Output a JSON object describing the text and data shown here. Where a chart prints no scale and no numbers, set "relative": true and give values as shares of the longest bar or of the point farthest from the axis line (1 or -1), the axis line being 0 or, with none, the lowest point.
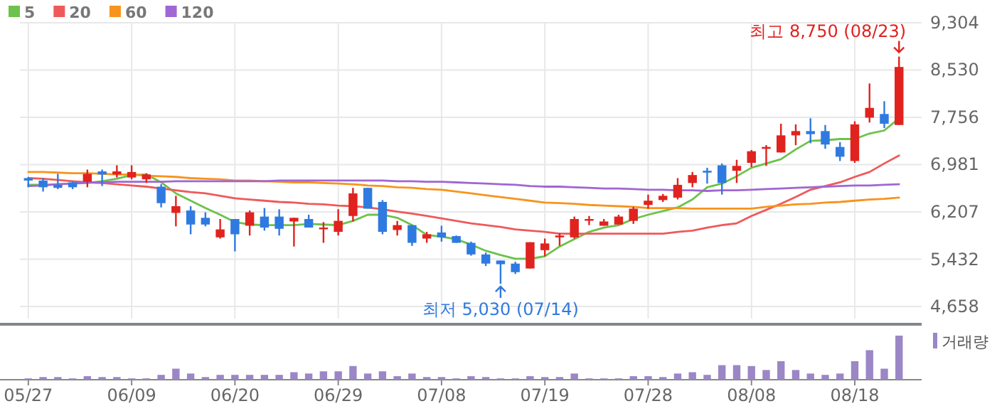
{
  "chart_data": [
    {
      "type": "candlestick",
      "categories": [
        null,
        null,
        null,
        null,
        null,
        null,
        null,
        null,
        null,
        null,
        null,
        null,
        null,
        null,
        null,
        null,
        null,
        null,
        null,
        null,
        null,
        null,
        null,
        null,
        null,
        null,
        null,
        null,
        null,
        null,
        null,
        null,
        null,
        null,
        null,
        null,
        null,
        null,
        null,
        null,
        null,
        null,
        null,
        null,
        null,
        null,
        null,
        null,
        null,
        null,
        null,
        null,
        null,
        null,
        null,
        null,
        null,
        null,
        null,
        null
      ],
      "ohlc": [
        [
          6760,
          6780,
          6610,
          6720
        ],
        [
          6720,
          6760,
          6540,
          6610
        ],
        [
          6650,
          6830,
          6580,
          6600
        ],
        [
          6690,
          6700,
          6580,
          6610
        ],
        [
          6700,
          6900,
          6610,
          6830
        ],
        [
          6870,
          6900,
          6630,
          6820
        ],
        [
          6820,
          6970,
          6770,
          6870
        ],
        [
          6770,
          6970,
          6740,
          6860
        ],
        [
          6740,
          6840,
          6680,
          6820
        ],
        [
          6620,
          6660,
          6280,
          6350
        ],
        [
          6190,
          6470,
          5970,
          6300
        ],
        [
          6230,
          6300,
          5840,
          6000
        ],
        [
          6110,
          6200,
          5970,
          6000
        ],
        [
          5790,
          6090,
          5770,
          5920
        ],
        [
          6090,
          6090,
          5560,
          5840
        ],
        [
          5980,
          6230,
          5820,
          6200
        ],
        [
          6130,
          6270,
          5900,
          5950
        ],
        [
          6130,
          6250,
          5820,
          5930
        ],
        [
          6050,
          6110,
          5640,
          6110
        ],
        [
          6090,
          6160,
          5950,
          5950
        ],
        [
          5930,
          6040,
          5700,
          5950
        ],
        [
          5880,
          6250,
          5820,
          6060
        ],
        [
          6140,
          6600,
          6050,
          6510
        ],
        [
          6600,
          6600,
          6260,
          6260
        ],
        [
          6370,
          6400,
          5840,
          5880
        ],
        [
          5910,
          6060,
          5820,
          5990
        ],
        [
          5990,
          5990,
          5650,
          5700
        ],
        [
          5770,
          5880,
          5700,
          5840
        ],
        [
          5870,
          5980,
          5720,
          5790
        ],
        [
          5810,
          5820,
          5700,
          5700
        ],
        [
          5700,
          5720,
          5490,
          5510
        ],
        [
          5510,
          5540,
          5320,
          5360
        ],
        [
          5410,
          5410,
          5030,
          5350
        ],
        [
          5360,
          5390,
          5190,
          5220
        ],
        [
          5280,
          5710,
          5280,
          5710
        ],
        [
          5580,
          5770,
          5480,
          5690
        ],
        [
          5790,
          5860,
          5650,
          5820
        ],
        [
          5790,
          6130,
          5770,
          6090
        ],
        [
          6080,
          6140,
          5990,
          6090
        ],
        [
          5980,
          6090,
          5980,
          6050
        ],
        [
          6000,
          6160,
          6000,
          6130
        ],
        [
          6060,
          6290,
          6010,
          6260
        ],
        [
          6320,
          6490,
          6260,
          6390
        ],
        [
          6400,
          6500,
          6370,
          6470
        ],
        [
          6440,
          6760,
          6410,
          6650
        ],
        [
          6680,
          6860,
          6610,
          6810
        ],
        [
          6880,
          6930,
          6670,
          6850
        ],
        [
          6970,
          7000,
          6490,
          6680
        ],
        [
          6880,
          7060,
          6680,
          6960
        ],
        [
          7010,
          7220,
          6940,
          7200
        ],
        [
          7240,
          7300,
          6960,
          7270
        ],
        [
          7180,
          7650,
          7180,
          7460
        ],
        [
          7460,
          7640,
          7300,
          7530
        ],
        [
          7530,
          7740,
          7330,
          7480
        ],
        [
          7530,
          7630,
          7240,
          7310
        ],
        [
          7270,
          7350,
          7040,
          7110
        ],
        [
          7040,
          7690,
          7010,
          7640
        ],
        [
          7750,
          8310,
          7670,
          7910
        ],
        [
          7810,
          8020,
          7580,
          7650
        ],
        [
          7630,
          8750,
          7630,
          8580
        ]
      ],
      "series": [
        {
          "name": "5",
          "type": "line",
          "color": "#6cc24a",
          "values": [
            6650,
            6650,
            6660,
            6670,
            6680,
            6710,
            6750,
            6810,
            6820,
            6690,
            6510,
            6390,
            6270,
            6160,
            6040,
            6000,
            5990,
            5990,
            5990,
            6010,
            6000,
            5990,
            6060,
            6160,
            6160,
            6110,
            5990,
            5830,
            5800,
            5760,
            5670,
            5570,
            5500,
            5440,
            5440,
            5480,
            5640,
            5760,
            5880,
            5950,
            5990,
            6090,
            6160,
            6220,
            6280,
            6410,
            6610,
            6670,
            6790,
            6930,
            7000,
            7070,
            7230,
            7370,
            7380,
            7400,
            7400,
            7490,
            7540,
            7740
          ]
        },
        {
          "name": "20",
          "type": "line",
          "color": "#ee5a5a",
          "values": [
            6760,
            6750,
            6730,
            6710,
            6690,
            6680,
            6660,
            6640,
            6620,
            6590,
            6560,
            6530,
            6510,
            6470,
            6430,
            6410,
            6390,
            6370,
            6360,
            6340,
            6330,
            6310,
            6300,
            6280,
            6250,
            6210,
            6180,
            6140,
            6100,
            6060,
            6020,
            5990,
            5960,
            5920,
            5900,
            5880,
            5850,
            5850,
            5850,
            5850,
            5850,
            5850,
            5850,
            5850,
            5880,
            5900,
            5950,
            5990,
            6020,
            6140,
            6240,
            6340,
            6450,
            6570,
            6630,
            6690,
            6780,
            6860,
            7000,
            7130
          ]
        },
        {
          "name": "60",
          "type": "line",
          "color": "#f7941d",
          "values": [
            6860,
            6860,
            6850,
            6840,
            6840,
            6830,
            6820,
            6820,
            6800,
            6790,
            6780,
            6760,
            6750,
            6740,
            6720,
            6720,
            6710,
            6700,
            6690,
            6690,
            6680,
            6670,
            6660,
            6640,
            6630,
            6610,
            6600,
            6580,
            6570,
            6540,
            6510,
            6480,
            6450,
            6420,
            6390,
            6360,
            6350,
            6340,
            6320,
            6310,
            6300,
            6290,
            6270,
            6270,
            6270,
            6260,
            6260,
            6260,
            6260,
            6260,
            6290,
            6310,
            6330,
            6340,
            6360,
            6370,
            6390,
            6410,
            6420,
            6440
          ]
        },
        {
          "name": "120",
          "type": "line",
          "color": "#a066d3",
          "values": [
            6630,
            6640,
            6660,
            6670,
            6690,
            6690,
            6700,
            6700,
            6700,
            6700,
            6710,
            6710,
            6710,
            6710,
            6710,
            6710,
            6710,
            6720,
            6720,
            6720,
            6720,
            6720,
            6720,
            6720,
            6720,
            6710,
            6710,
            6700,
            6700,
            6690,
            6680,
            6670,
            6660,
            6650,
            6630,
            6620,
            6620,
            6610,
            6600,
            6590,
            6590,
            6580,
            6570,
            6570,
            6560,
            6560,
            6550,
            6560,
            6560,
            6570,
            6580,
            6590,
            6600,
            6610,
            6620,
            6630,
            6640,
            6640,
            6650,
            6660
          ]
        }
      ],
      "ylim": [
        4460,
        9304
      ],
      "yticks": [
        {
          "value": 4658,
          "label": "4,658"
        },
        {
          "value": 5432,
          "label": "5,432"
        },
        {
          "value": 6207,
          "label": "6,207"
        },
        {
          "value": 6981,
          "label": "6,981"
        },
        {
          "value": 7756,
          "label": "7,756"
        },
        {
          "value": 8530,
          "label": "8,530"
        },
        {
          "value": 9304,
          "label": "9,304"
        }
      ],
      "grid": true,
      "legend": "top left",
      "tick_labels": "y",
      "annotations": [
        "최고 8,750 (08/23)",
        "최저 5,030 (07/14)"
      ]
    },
    {
      "type": "bar",
      "relative": true,
      "color": "#9b86c6",
      "legend": "top right",
      "tick_labels": "x",
      "categories": [
        "05/27",
        null,
        null,
        null,
        null,
        null,
        null,
        "06/09",
        null,
        null,
        null,
        null,
        null,
        null,
        "06/20",
        null,
        null,
        null,
        null,
        null,
        null,
        "06/29",
        null,
        null,
        null,
        null,
        null,
        null,
        "07/08",
        null,
        null,
        null,
        null,
        null,
        null,
        "07/19",
        null,
        null,
        null,
        null,
        null,
        null,
        "07/28",
        null,
        null,
        null,
        null,
        null,
        null,
        "08/08",
        null,
        null,
        null,
        null,
        null,
        null,
        "08/18",
        null,
        null,
        null
      ],
      "series": [
        {
          "name": "거래량",
          "values": [
            0.03,
            0.06,
            0.06,
            0.03,
            0.08,
            0.06,
            0.06,
            0.03,
            0.03,
            0.11,
            0.25,
            0.14,
            0.06,
            0.11,
            0.11,
            0.11,
            0.11,
            0.11,
            0.17,
            0.14,
            0.19,
            0.19,
            0.31,
            0.14,
            0.19,
            0.08,
            0.14,
            0.06,
            0.06,
            0.03,
            0.08,
            0.06,
            0.03,
            0.03,
            0.08,
            0.06,
            0.06,
            0.14,
            0.03,
            0.03,
            0.03,
            0.08,
            0.08,
            0.06,
            0.14,
            0.17,
            0.11,
            0.33,
            0.33,
            0.31,
            0.22,
            0.42,
            0.22,
            0.14,
            0.11,
            0.14,
            0.42,
            0.67,
            0.25,
            1
          ]
        }
      ]
    }
  ]
}
